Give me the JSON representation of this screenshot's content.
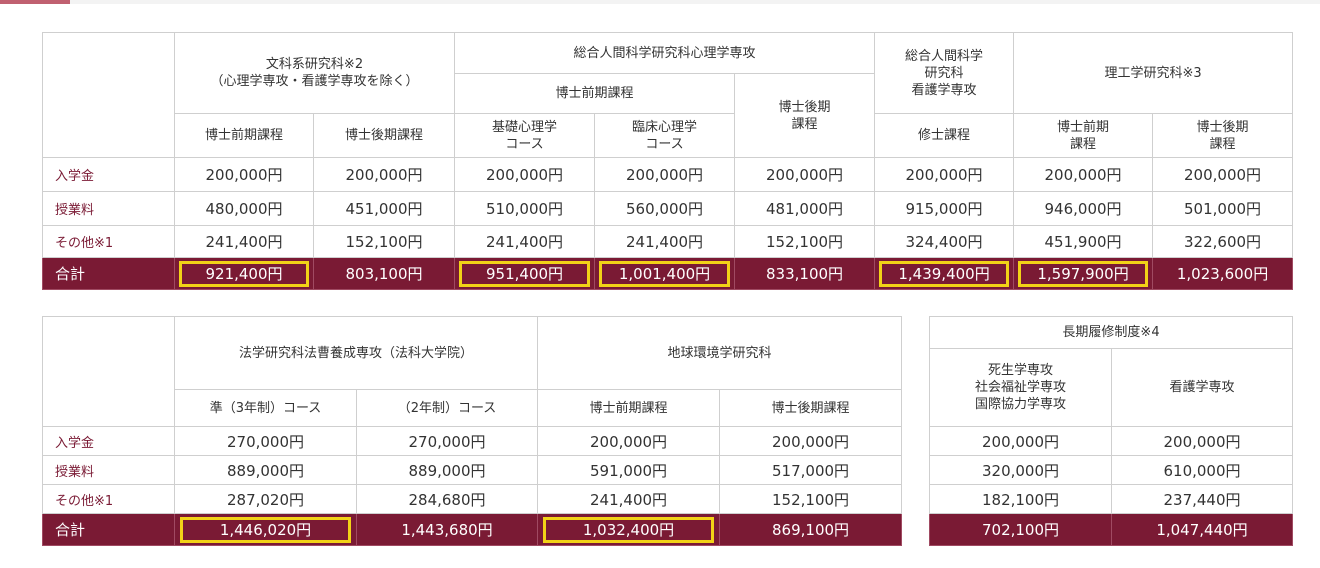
{
  "row_labels": {
    "admission": "入学金",
    "tuition": "授業料",
    "other": "その他※1",
    "total": "合計"
  },
  "table1": {
    "groups": {
      "humanities": "文科系研究科※2\n（心理学専攻・看護学専攻を除く）",
      "psychology": "総合人間科学研究科心理学専攻",
      "psych_master": "博士前期課程",
      "psych_doctor": "博士後期\n課程",
      "nursing": "総合人間科学\n研究科\n看護学専攻",
      "science": "理工学研究科※3"
    },
    "columns": [
      {
        "label": "博士前期課程",
        "admission": "200,000円",
        "tuition": "480,000円",
        "other": "241,400円",
        "total": "921,400円"
      },
      {
        "label": "博士後期課程",
        "admission": "200,000円",
        "tuition": "451,000円",
        "other": "152,100円",
        "total": "803,100円"
      },
      {
        "label": "基礎心理学\nコース",
        "admission": "200,000円",
        "tuition": "510,000円",
        "other": "241,400円",
        "total": "951,400円"
      },
      {
        "label": "臨床心理学\nコース",
        "admission": "200,000円",
        "tuition": "560,000円",
        "other": "241,400円",
        "total": "1,001,400円"
      },
      {
        "label": "",
        "admission": "200,000円",
        "tuition": "481,000円",
        "other": "152,100円",
        "total": "833,100円"
      },
      {
        "label": "修士課程",
        "admission": "200,000円",
        "tuition": "915,000円",
        "other": "324,400円",
        "total": "1,439,400円"
      },
      {
        "label": "博士前期\n課程",
        "admission": "200,000円",
        "tuition": "946,000円",
        "other": "451,900円",
        "total": "1,597,900円"
      },
      {
        "label": "博士後期\n課程",
        "admission": "200,000円",
        "tuition": "501,000円",
        "other": "322,600円",
        "total": "1,023,600円"
      }
    ]
  },
  "table2": {
    "groups": {
      "law": "法学研究科法曹養成専攻（法科大学院）",
      "earth": "地球環境学研究科"
    },
    "columns": [
      {
        "label": "準（3年制）コース",
        "admission": "270,000円",
        "tuition": "889,000円",
        "other": "287,020円",
        "total": "1,446,020円"
      },
      {
        "label": "（2年制）コース",
        "admission": "270,000円",
        "tuition": "889,000円",
        "other": "284,680円",
        "total": "1,443,680円"
      },
      {
        "label": "博士前期課程",
        "admission": "200,000円",
        "tuition": "591,000円",
        "other": "241,400円",
        "total": "1,032,400円"
      },
      {
        "label": "博士後期課程",
        "admission": "200,000円",
        "tuition": "517,000円",
        "other": "152,100円",
        "total": "869,100円"
      }
    ]
  },
  "table3": {
    "title": "長期履修制度※4",
    "columns": [
      {
        "label": "死生学専攻\n社会福祉学専攻\n国際協力学専攻",
        "admission": "200,000円",
        "tuition": "320,000円",
        "other": "182,100円",
        "total": "702,100円"
      },
      {
        "label": "看護学専攻",
        "admission": "200,000円",
        "tuition": "610,000円",
        "other": "237,440円",
        "total": "1,047,440円"
      }
    ]
  },
  "colors": {
    "total_row": "#7a1a34",
    "highlight_border": "#f2d217",
    "label_text": "#7a1a34"
  }
}
